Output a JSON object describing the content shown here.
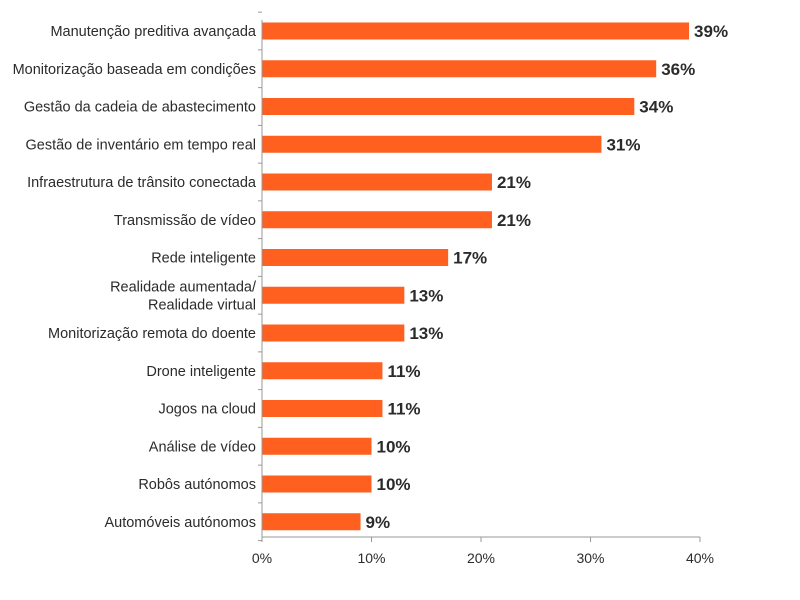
{
  "colors": {
    "bar": "#ff5f1f",
    "axis": "#9a9a9a",
    "text": "#2b2b2b"
  },
  "chart_data": {
    "type": "bar",
    "orientation": "horizontal",
    "title": "",
    "xlabel": "",
    "ylabel": "",
    "xlim": [
      0,
      40
    ],
    "xticks": [
      0,
      10,
      20,
      30,
      40
    ],
    "xtick_labels": [
      "0%",
      "10%",
      "20%",
      "30%",
      "40%"
    ],
    "grid": false,
    "categories": [
      [
        "Manutenção preditiva avançada"
      ],
      [
        "Monitorização baseada em condições"
      ],
      [
        "Gestão da cadeia de abastecimento"
      ],
      [
        "Gestão de inventário em tempo real"
      ],
      [
        "Infraestrutura de trânsito conectada"
      ],
      [
        "Transmissão de vídeo"
      ],
      [
        "Rede inteligente"
      ],
      [
        "Realidade aumentada/",
        "Realidade virtual"
      ],
      [
        "Monitorização remota do doente"
      ],
      [
        "Drone inteligente"
      ],
      [
        "Jogos na cloud"
      ],
      [
        "Análise de vídeo"
      ],
      [
        "Robôs autónomos"
      ],
      [
        "Automóveis autónomos"
      ]
    ],
    "values": [
      39,
      36,
      34,
      31,
      21,
      21,
      17,
      13,
      13,
      11,
      11,
      10,
      10,
      9
    ],
    "value_labels": [
      "39%",
      "36%",
      "34%",
      "31%",
      "21%",
      "21%",
      "17%",
      "13%",
      "13%",
      "11%",
      "11%",
      "10%",
      "10%",
      "9%"
    ]
  }
}
